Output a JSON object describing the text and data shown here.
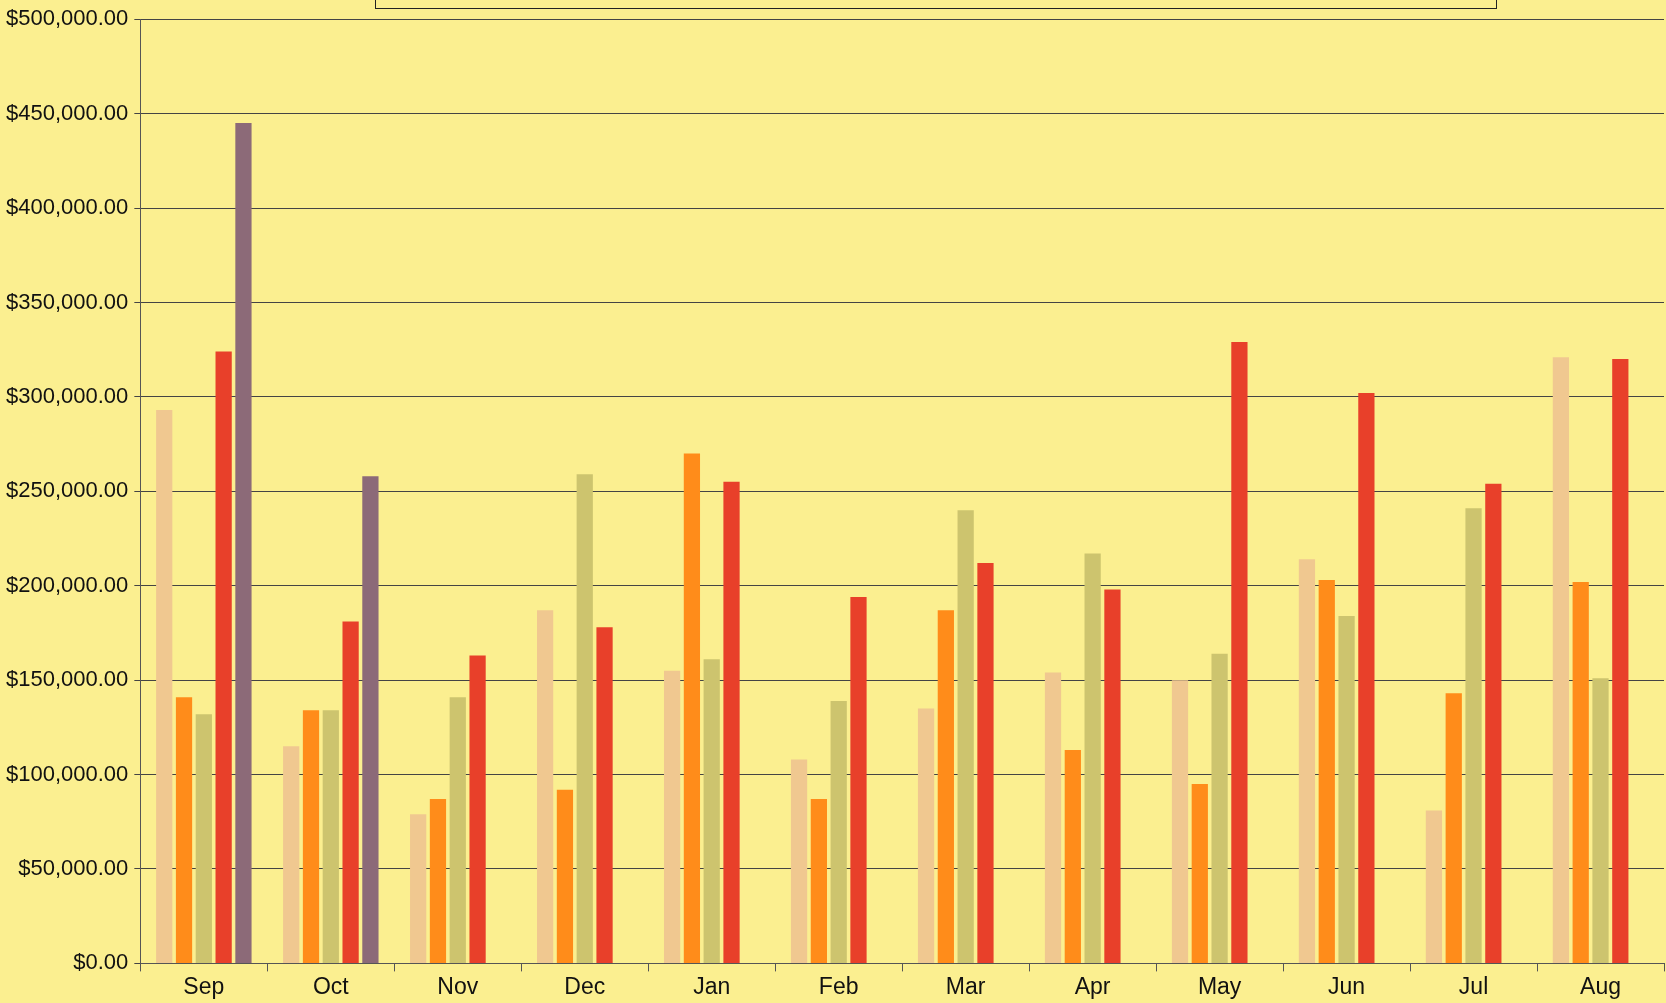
{
  "chart_data": {
    "type": "bar",
    "categories": [
      "Sep",
      "Oct",
      "Nov",
      "Dec",
      "Jan",
      "Feb",
      "Mar",
      "Apr",
      "May",
      "Jun",
      "Jul",
      "Aug"
    ],
    "series": [
      {
        "color": "#f0c890",
        "values": [
          293000,
          115000,
          79000,
          187000,
          155000,
          108000,
          135000,
          154000,
          150000,
          214000,
          81000,
          321000
        ]
      },
      {
        "color": "#ff8c1a",
        "values": [
          141000,
          134000,
          87000,
          92000,
          270000,
          87000,
          187000,
          113000,
          95000,
          203000,
          143000,
          202000
        ]
      },
      {
        "color": "#cdc46e",
        "values": [
          132000,
          134000,
          141000,
          259000,
          161000,
          139000,
          240000,
          217000,
          164000,
          184000,
          241000,
          151000
        ]
      },
      {
        "color": "#e8402a",
        "values": [
          324000,
          181000,
          163000,
          178000,
          255000,
          194000,
          212000,
          198000,
          329000,
          302000,
          254000,
          320000
        ]
      },
      {
        "color": "#8c6a78",
        "values": [
          445000,
          258000,
          null,
          null,
          null,
          null,
          null,
          null,
          null,
          null,
          null,
          null
        ]
      }
    ],
    "ylim": [
      0,
      500000
    ],
    "yticks": [
      {
        "value": 0,
        "label": "$0.00"
      },
      {
        "value": 50000,
        "label": "$50,000.00"
      },
      {
        "value": 100000,
        "label": "$100,000.00"
      },
      {
        "value": 150000,
        "label": "$150,000.00"
      },
      {
        "value": 200000,
        "label": "$200,000.00"
      },
      {
        "value": 250000,
        "label": "$250,000.00"
      },
      {
        "value": 300000,
        "label": "$300,000.00"
      },
      {
        "value": 350000,
        "label": "$350,000.00"
      },
      {
        "value": 400000,
        "label": "$400,000.00"
      },
      {
        "value": 450000,
        "label": "$450,000.00"
      },
      {
        "value": 500000,
        "label": "$500,000.00"
      }
    ],
    "grid": "y"
  }
}
